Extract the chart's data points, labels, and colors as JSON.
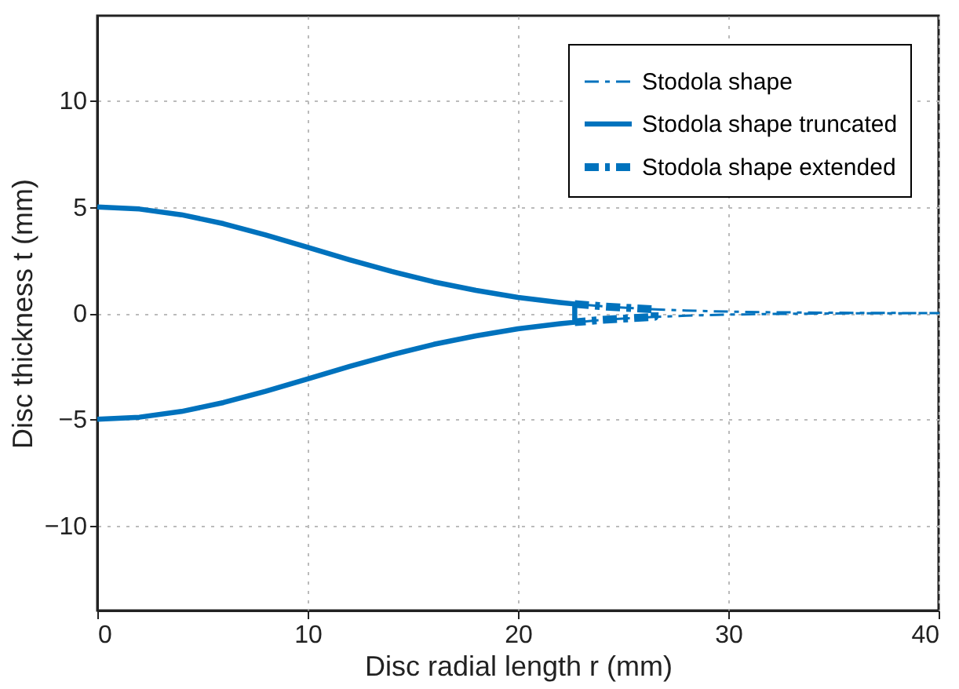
{
  "chart_data": {
    "type": "line",
    "xlabel": "Disc radial length  r (mm)",
    "ylabel": "Disc thickness  t (mm)",
    "xlim": [
      0,
      40
    ],
    "ylim": [
      -14,
      14
    ],
    "xticks": [
      0,
      10,
      20,
      30,
      40
    ],
    "yticks": [
      -10,
      -5,
      0,
      5,
      10
    ],
    "grid": true,
    "legend": "top right",
    "marker": "none",
    "series": [
      {
        "name": "Stodola shape",
        "color": "#0072bd",
        "line_style": "dashed",
        "x": [
          0,
          2,
          4,
          6,
          8,
          10,
          12,
          14,
          16,
          18,
          20,
          22,
          24,
          26,
          28,
          30,
          32,
          36,
          40,
          40,
          36,
          32,
          30,
          28,
          26,
          24,
          22,
          20,
          18,
          16,
          14,
          12,
          10,
          8,
          6,
          4,
          2,
          0
        ],
        "values": [
          5,
          4.9,
          4.63,
          4.21,
          3.68,
          3.1,
          2.51,
          1.96,
          1.47,
          1.07,
          0.74,
          0.5,
          0.32,
          0.2,
          0.12,
          0.07,
          0.04,
          0.01,
          0,
          0,
          -0.01,
          -0.04,
          -0.07,
          -0.12,
          -0.2,
          -0.32,
          -0.5,
          -0.74,
          -1.07,
          -1.47,
          -1.96,
          -2.51,
          -3.1,
          -3.68,
          -4.21,
          -4.63,
          -4.9,
          -5
        ]
      },
      {
        "name": "Stodola shape truncated",
        "color": "#0072bd",
        "line_style": "solid",
        "x": [
          0,
          2,
          4,
          6,
          8,
          10,
          12,
          14,
          16,
          18,
          20,
          22,
          22.7,
          22.7,
          22,
          20,
          18,
          16,
          14,
          12,
          10,
          8,
          6,
          4,
          2,
          0
        ],
        "values": [
          5,
          4.9,
          4.63,
          4.21,
          3.68,
          3.1,
          2.51,
          1.96,
          1.47,
          1.07,
          0.74,
          0.5,
          0.43,
          -0.43,
          -0.5,
          -0.74,
          -1.07,
          -1.47,
          -1.96,
          -2.51,
          -3.1,
          -3.68,
          -4.21,
          -4.63,
          -4.9,
          -5
        ]
      },
      {
        "name": "Stodola shape extended",
        "color": "#0072bd",
        "line_style": "dashed",
        "x": [
          22.7,
          24,
          25,
          26.5,
          26.5,
          25,
          24,
          22.7
        ],
        "values": [
          0.43,
          0.32,
          0.26,
          0.18,
          -0.18,
          -0.26,
          -0.32,
          -0.43
        ]
      }
    ]
  }
}
